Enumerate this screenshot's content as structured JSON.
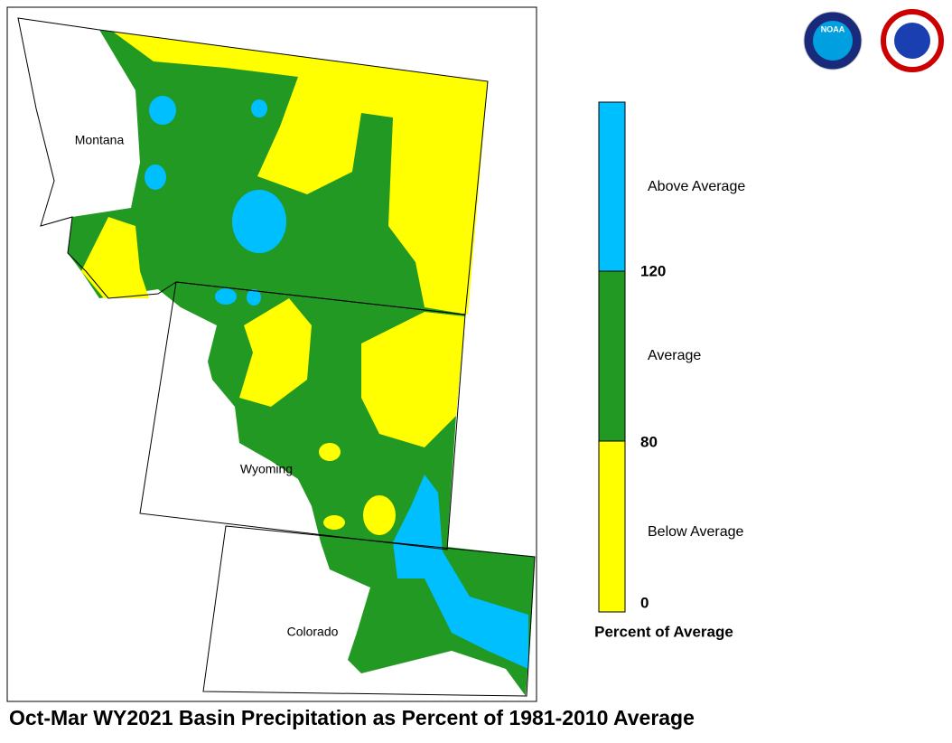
{
  "title": "Oct-Mar WY2021 Basin Precipitation as Percent of 1981-2010 Average",
  "logos": {
    "noaa": "NOAA"
  },
  "map": {
    "states": [
      "Montana",
      "Wyoming",
      "Colorado"
    ]
  },
  "legend": {
    "title": "Percent of Average",
    "classes": [
      {
        "label": "Above Average",
        "color": "#00bfff"
      },
      {
        "label": "Average",
        "color": "#229922"
      },
      {
        "label": "Below Average",
        "color": "#ffff00"
      }
    ],
    "breaks": [
      120,
      80,
      0
    ]
  }
}
